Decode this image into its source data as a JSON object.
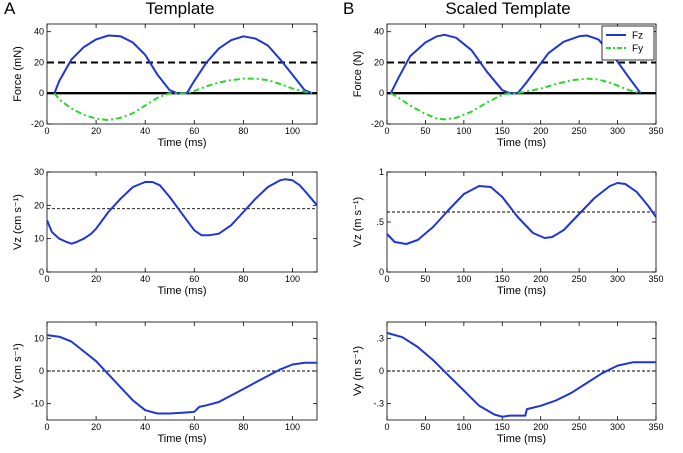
{
  "figure": {
    "col_a": {
      "letter": "A",
      "title": "Template"
    },
    "col_b": {
      "letter": "B",
      "title": "Scaled Template"
    }
  },
  "colors": {
    "blue": "#1f35d6",
    "green": "#2bd62b",
    "black": "#000000"
  },
  "chart_data": [
    {
      "id": "a_force",
      "col": 0,
      "row": 0,
      "type": "line",
      "xlabel": "Time (ms)",
      "ylabel": "Force (mN)",
      "xlim": [
        0,
        110
      ],
      "ylim": [
        -20,
        45
      ],
      "xticks": [
        0,
        20,
        40,
        60,
        80,
        100
      ],
      "yticks": [
        -20,
        0,
        20,
        40
      ],
      "hlines": [
        {
          "y": 20,
          "style": "dashed-thick"
        },
        {
          "y": 0,
          "style": "solid-thick"
        }
      ],
      "grid": false,
      "series": [
        {
          "color": "blue",
          "style": "solid",
          "x": [
            3,
            5,
            10,
            15,
            20,
            25,
            30,
            35,
            40,
            45,
            50,
            53,
            57,
            60,
            65,
            70,
            75,
            80,
            85,
            90,
            95,
            100,
            105,
            108
          ],
          "y": [
            0,
            8,
            22,
            30,
            35,
            37.5,
            37,
            33,
            25,
            12,
            2,
            0,
            0,
            8,
            20,
            29,
            34.5,
            37,
            35.5,
            31,
            22,
            12,
            2,
            0
          ]
        },
        {
          "color": "green",
          "style": "dashdot",
          "x": [
            3,
            5,
            10,
            15,
            20,
            25,
            30,
            35,
            40,
            45,
            50,
            53,
            57,
            60,
            65,
            70,
            75,
            80,
            85,
            90,
            95,
            100,
            105,
            108
          ],
          "y": [
            0,
            -4,
            -10,
            -14,
            -16.5,
            -17.5,
            -16,
            -13,
            -8,
            -3,
            0,
            0,
            0,
            1.5,
            4.5,
            7,
            8.5,
            9.5,
            9.5,
            8.5,
            6,
            3,
            1,
            0
          ]
        }
      ]
    },
    {
      "id": "a_vz",
      "col": 0,
      "row": 1,
      "type": "line",
      "xlabel": "Time (ms)",
      "ylabel": "Vz (cm s⁻¹)",
      "xlim": [
        0,
        110
      ],
      "ylim": [
        0,
        30
      ],
      "xticks": [
        0,
        20,
        40,
        60,
        80,
        100
      ],
      "yticks": [
        0,
        10,
        20,
        30
      ],
      "hlines": [
        {
          "y": 19,
          "style": "dashed-thin"
        }
      ],
      "grid": false,
      "series": [
        {
          "color": "blue",
          "style": "solid",
          "x": [
            0,
            2,
            5,
            8,
            10,
            12,
            15,
            18,
            20,
            25,
            30,
            35,
            40,
            43,
            46,
            50,
            55,
            60,
            63,
            66,
            70,
            75,
            80,
            85,
            90,
            95,
            97,
            100,
            103,
            106,
            110
          ],
          "y": [
            15.5,
            12,
            10,
            9,
            8.5,
            9,
            10,
            11.5,
            13,
            18,
            22,
            25.5,
            27,
            27,
            26,
            22.5,
            17.5,
            12.5,
            11,
            11,
            11.5,
            14,
            18,
            22,
            25.5,
            27.5,
            27.8,
            27.5,
            26,
            23.5,
            20
          ]
        }
      ]
    },
    {
      "id": "a_vy",
      "col": 0,
      "row": 2,
      "type": "line",
      "xlabel": "Time (ms)",
      "ylabel": "Vy (cm s⁻¹)",
      "xlim": [
        0,
        110
      ],
      "ylim": [
        -15,
        15
      ],
      "xticks": [
        0,
        20,
        40,
        60,
        80,
        100
      ],
      "yticks": [
        -10,
        0,
        10
      ],
      "hlines": [
        {
          "y": 0,
          "style": "dashed-thin"
        }
      ],
      "grid": false,
      "series": [
        {
          "color": "blue",
          "style": "solid",
          "x": [
            0,
            5,
            10,
            15,
            20,
            25,
            30,
            35,
            40,
            45,
            50,
            55,
            58,
            60,
            62,
            65,
            70,
            75,
            80,
            85,
            90,
            95,
            100,
            105,
            110
          ],
          "y": [
            11,
            10.5,
            9,
            6,
            3,
            -1,
            -5,
            -9,
            -12,
            -13,
            -13,
            -12.8,
            -12.6,
            -12.5,
            -11,
            -10.5,
            -9.5,
            -7.5,
            -5.5,
            -3.5,
            -1.5,
            0.5,
            2,
            2.5,
            2.5
          ]
        }
      ]
    },
    {
      "id": "b_force",
      "col": 1,
      "row": 0,
      "type": "line",
      "xlabel": "Time (ms)",
      "ylabel": "Force (N)",
      "xlim": [
        0,
        350
      ],
      "ylim": [
        -20,
        45
      ],
      "xticks": [
        0,
        50,
        100,
        150,
        200,
        250,
        300,
        350
      ],
      "yticks": [
        -20,
        0,
        20,
        40
      ],
      "hlines": [
        {
          "y": 20,
          "style": "dashed-thick"
        },
        {
          "y": 0,
          "style": "solid-thick"
        }
      ],
      "grid": false,
      "legend": {
        "position": "top-right",
        "entries": [
          {
            "label": "Fz",
            "color": "blue",
            "style": "solid"
          },
          {
            "label": "Fy",
            "color": "green",
            "style": "dashdot"
          }
        ]
      },
      "series": [
        {
          "name": "Fz",
          "color": "blue",
          "style": "solid",
          "x": [
            5,
            15,
            30,
            50,
            65,
            75,
            90,
            110,
            130,
            150,
            160,
            170,
            180,
            195,
            210,
            230,
            250,
            260,
            275,
            295,
            315,
            330
          ],
          "y": [
            0,
            10,
            24,
            33,
            37,
            38,
            36,
            28,
            14,
            2,
            0,
            0,
            6,
            16,
            26,
            33.5,
            37,
            37.5,
            35,
            24,
            10,
            0
          ]
        },
        {
          "name": "Fy",
          "color": "green",
          "style": "dashdot",
          "x": [
            5,
            15,
            30,
            50,
            65,
            75,
            90,
            110,
            130,
            150,
            160,
            170,
            180,
            200,
            220,
            240,
            260,
            275,
            295,
            315,
            330
          ],
          "y": [
            0,
            -3,
            -8,
            -13.5,
            -16.5,
            -17,
            -16,
            -12,
            -6,
            -1,
            0,
            0,
            1,
            3,
            6,
            8.5,
            9.5,
            9,
            6,
            2,
            0
          ]
        }
      ]
    },
    {
      "id": "b_vz",
      "col": 1,
      "row": 1,
      "type": "line",
      "xlabel": "Time (ms)",
      "ylabel": "Vz (m s⁻¹)",
      "xlim": [
        0,
        350
      ],
      "ylim": [
        0,
        1
      ],
      "xticks": [
        0,
        50,
        100,
        150,
        200,
        250,
        300,
        350
      ],
      "yticks": [
        0,
        0.5,
        1
      ],
      "hlines": [
        {
          "y": 0.6,
          "style": "dashed-thin"
        }
      ],
      "grid": false,
      "series": [
        {
          "color": "blue",
          "style": "solid",
          "x": [
            0,
            10,
            25,
            40,
            60,
            80,
            100,
            120,
            135,
            150,
            170,
            190,
            205,
            215,
            230,
            250,
            270,
            290,
            300,
            310,
            325,
            340,
            350
          ],
          "y": [
            0.38,
            0.3,
            0.28,
            0.32,
            0.45,
            0.62,
            0.78,
            0.86,
            0.85,
            0.75,
            0.55,
            0.39,
            0.34,
            0.35,
            0.42,
            0.58,
            0.74,
            0.86,
            0.89,
            0.88,
            0.8,
            0.66,
            0.55
          ]
        }
      ]
    },
    {
      "id": "b_vy",
      "col": 1,
      "row": 2,
      "type": "line",
      "xlabel": "Time (ms)",
      "ylabel": "Vy (m s⁻¹)",
      "xlim": [
        0,
        350
      ],
      "ylim": [
        -0.45,
        0.45
      ],
      "xticks": [
        0,
        50,
        100,
        150,
        200,
        250,
        300,
        350
      ],
      "yticks": [
        -0.3,
        0,
        0.3
      ],
      "hlines": [
        {
          "y": 0,
          "style": "dashed-thin"
        }
      ],
      "grid": false,
      "series": [
        {
          "color": "blue",
          "style": "solid",
          "x": [
            0,
            20,
            40,
            60,
            80,
            100,
            120,
            140,
            150,
            160,
            175,
            180,
            182,
            200,
            220,
            240,
            260,
            280,
            300,
            320,
            335,
            350
          ],
          "y": [
            0.35,
            0.31,
            0.22,
            0.1,
            -0.04,
            -0.18,
            -0.32,
            -0.4,
            -0.42,
            -0.41,
            -0.41,
            -0.41,
            -0.35,
            -0.32,
            -0.27,
            -0.2,
            -0.11,
            -0.02,
            0.05,
            0.08,
            0.08,
            0.08
          ]
        }
      ]
    }
  ]
}
